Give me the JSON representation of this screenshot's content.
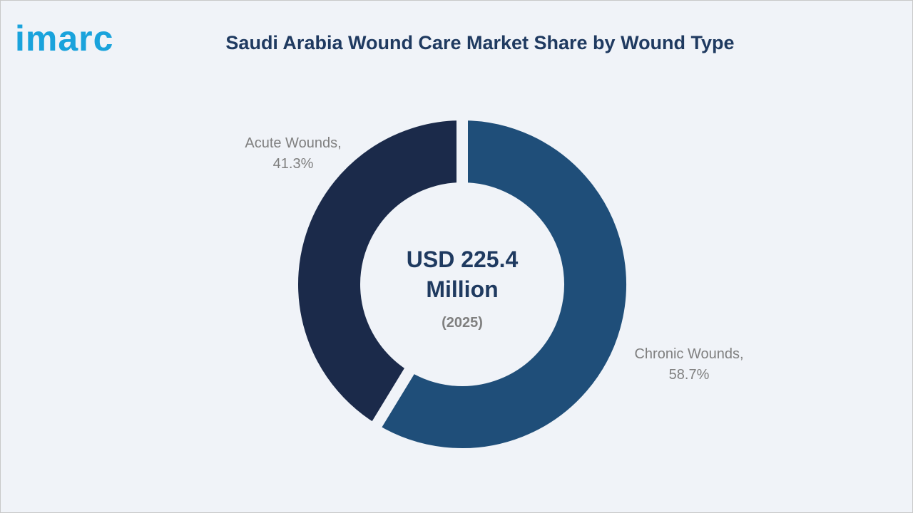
{
  "logo": "imarc",
  "chart_data": {
    "type": "donut",
    "title": "Saudi Arabia Wound Care Market Share by Wound Type",
    "center_label": "USD 225.4 Million",
    "center_sublabel": "(2025)",
    "categories": [
      "Chronic Wounds,",
      "Acute Wounds,"
    ],
    "values": [
      58.7,
      41.3
    ],
    "value_labels": [
      "58.7%",
      "41.3%"
    ],
    "colors": [
      "#1f4e79",
      "#1b2a4a"
    ]
  }
}
